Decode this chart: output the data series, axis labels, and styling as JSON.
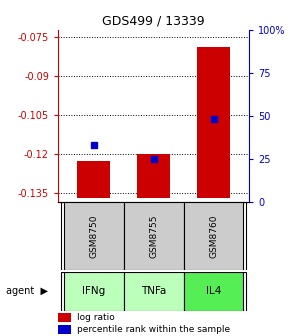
{
  "title": "GDS499 / 13339",
  "categories": [
    "IFNg",
    "TNFa",
    "IL4"
  ],
  "gsm_labels": [
    "GSM8750",
    "GSM8755",
    "GSM8760"
  ],
  "log_ratios": [
    -0.123,
    -0.12,
    -0.079
  ],
  "percentile_ranks": [
    33,
    25,
    48
  ],
  "bar_color": "#cc0000",
  "dot_color": "#0000cc",
  "ylim_left": [
    -0.1385,
    -0.0725
  ],
  "ylim_right": [
    0,
    100
  ],
  "yticks_left": [
    -0.075,
    -0.09,
    -0.105,
    -0.12,
    -0.135
  ],
  "yticks_right": [
    0,
    25,
    50,
    75,
    100
  ],
  "ytick_right_labels": [
    "0",
    "25",
    "50",
    "75",
    "100%"
  ],
  "left_axis_color": "#cc0000",
  "right_axis_color": "#0000cc",
  "agent_colors": [
    "#bbffbb",
    "#bbffbb",
    "#55ee55"
  ],
  "gsm_bg_color": "#cccccc",
  "bar_baseline": -0.137,
  "bar_width": 0.55,
  "legend_items": [
    "log ratio",
    "percentile rank within the sample"
  ]
}
